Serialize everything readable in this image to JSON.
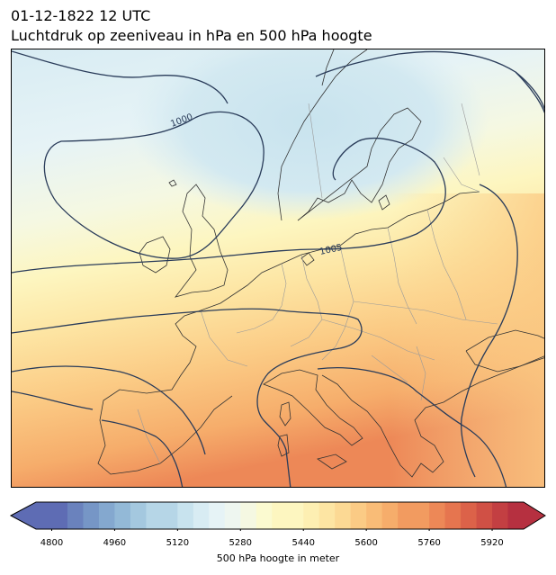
{
  "title": {
    "line1": "01-12-1822 12 UTC",
    "line2": "Luchtdruk op zeeniveau in hPa en 500 hPa hoogte"
  },
  "map": {
    "isobar_labels": [
      "1000",
      "1005"
    ],
    "colors": {
      "isobar": "#2a3c5a",
      "coast": "#333333",
      "border": "#9a9a9a"
    }
  },
  "colorbar": {
    "label": "500 hPa hoogte in meter",
    "ticks": [
      "4800",
      "4960",
      "5120",
      "5280",
      "5440",
      "5600",
      "5760",
      "5920"
    ],
    "range": [
      4760,
      6000
    ],
    "step": 40,
    "colors": [
      "#5e6cb4",
      "#6a82bd",
      "#7696c6",
      "#84a8cf",
      "#93b9d7",
      "#a4c8df",
      "#b6d6e7",
      "#c8e3ee",
      "#d8ecf3",
      "#e6f3f6",
      "#eef6f0",
      "#f5f8e2",
      "#fbfad0",
      "#fdf6c0",
      "#fdefb2",
      "#fde5a3",
      "#fcd994",
      "#fbcb85",
      "#f9bc77",
      "#f6ad6b",
      "#f29b60",
      "#ed8857",
      "#e6754f",
      "#dc6249",
      "#d05045",
      "#c33f42",
      "#b63040"
    ]
  }
}
